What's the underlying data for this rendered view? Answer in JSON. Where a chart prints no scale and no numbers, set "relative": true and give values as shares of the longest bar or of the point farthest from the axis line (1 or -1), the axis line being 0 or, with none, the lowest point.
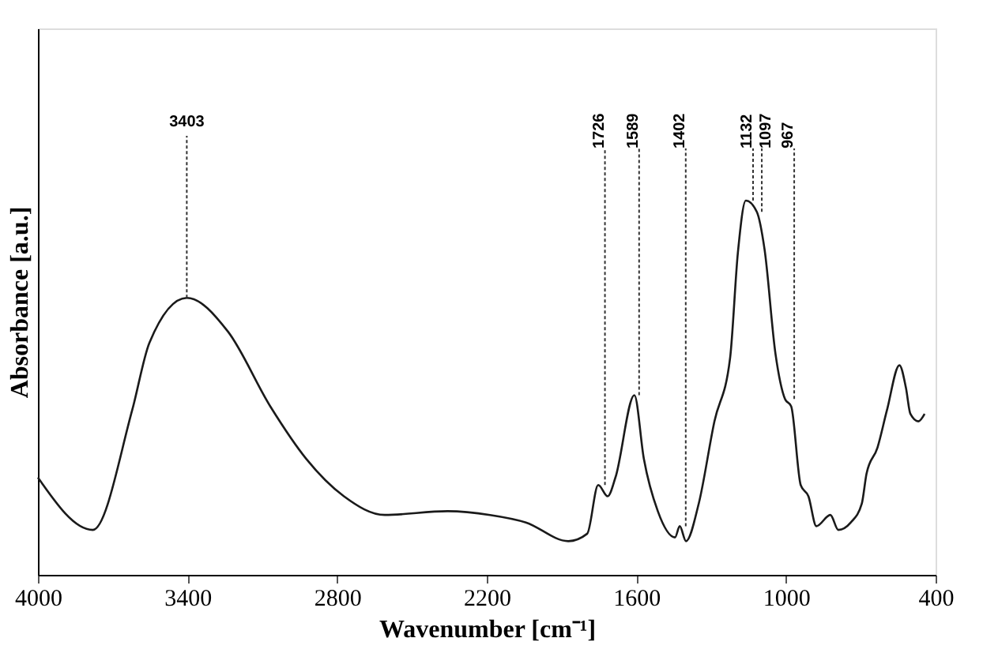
{
  "chart_data": {
    "type": "line",
    "relative": true,
    "xlabel": "Wavenumber [cm⁻¹]",
    "ylabel": "Absorbance [a.u.]",
    "xlim": [
      4000,
      400
    ],
    "xticks": [
      4000,
      3400,
      2800,
      2200,
      1600,
      1000,
      400
    ],
    "grid": false,
    "marker": "none",
    "line_style": "solid",
    "series": [
      {
        "color": "#1a1a1a",
        "x": [
          4000,
          3780,
          3622,
          3553,
          3403,
          3238,
          3068,
          2924,
          2773,
          2609,
          2357,
          2187,
          2043,
          1873,
          1797,
          1753,
          1715,
          1684,
          1608,
          1570,
          1514,
          1445,
          1426,
          1401,
          1350,
          1287,
          1224,
          1193,
          1161,
          1117,
          1086,
          1042,
          1004,
          979,
          941,
          910,
          878,
          822,
          790,
          740,
          696,
          677,
          633,
          595,
          545,
          519,
          501,
          469,
          444
        ],
        "values": [
          0.26,
          0.12,
          0.44,
          0.62,
          0.74,
          0.65,
          0.45,
          0.31,
          0.21,
          0.16,
          0.17,
          0.16,
          0.14,
          0.09,
          0.11,
          0.24,
          0.21,
          0.26,
          0.48,
          0.31,
          0.17,
          0.1,
          0.13,
          0.09,
          0.19,
          0.41,
          0.58,
          0.86,
          1.0,
          0.97,
          0.87,
          0.59,
          0.47,
          0.45,
          0.24,
          0.21,
          0.13,
          0.16,
          0.12,
          0.14,
          0.19,
          0.27,
          0.34,
          0.44,
          0.56,
          0.5,
          0.43,
          0.41,
          0.43
        ]
      }
    ],
    "annotations": [
      {
        "text": "3403",
        "x": 3403,
        "y": 0.74
      },
      {
        "text": "1726",
        "x": 1726,
        "y": 0.24
      },
      {
        "text": "1589",
        "x": 1589,
        "y": 0.48
      },
      {
        "text": "1402",
        "x": 1402,
        "y": 0.13
      },
      {
        "text": "1132",
        "x": 1132,
        "y": 1.0
      },
      {
        "text": "1097",
        "x": 1097,
        "y": 0.97
      },
      {
        "text": "967",
        "x": 967,
        "y": 0.47
      }
    ]
  }
}
